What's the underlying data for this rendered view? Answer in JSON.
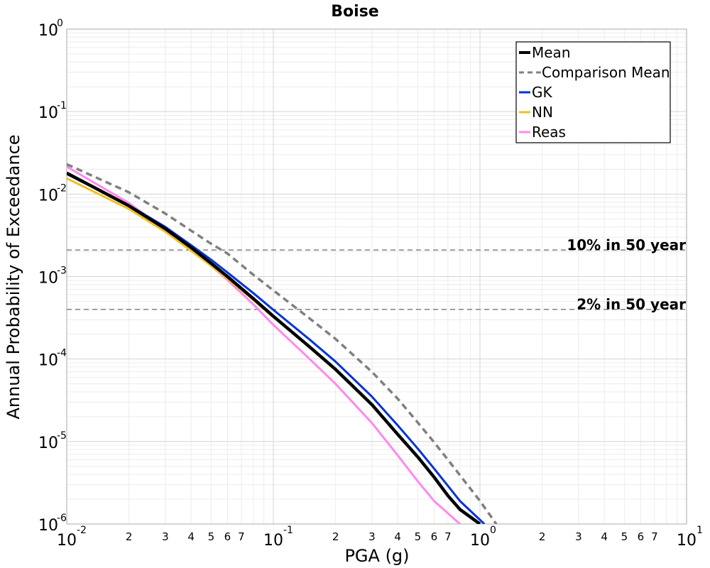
{
  "chart_data": {
    "type": "line",
    "title": "Boise",
    "xlabel": "PGA (g)",
    "ylabel": "Annual Probability of Exceedance",
    "xscale": "log",
    "yscale": "log",
    "xlim": [
      0.01,
      10
    ],
    "ylim": [
      1e-06,
      1
    ],
    "grid": true,
    "legend_position": "top-right",
    "x_major_ticks": [
      0.01,
      0.1,
      1,
      10
    ],
    "y_major_ticks": [
      1e-06,
      1e-05,
      0.0001,
      0.001,
      0.01,
      0.1,
      1
    ],
    "x_minor_tick_labels": [
      "2",
      "3",
      "4",
      "5",
      "6",
      "7"
    ],
    "series": [
      {
        "name": "Mean",
        "color": "#000000",
        "dash": "solid",
        "points": [
          [
            0.01,
            0.018
          ],
          [
            0.02,
            0.0072
          ],
          [
            0.03,
            0.0038
          ],
          [
            0.04,
            0.00225
          ],
          [
            0.05,
            0.00145
          ],
          [
            0.06,
            0.001
          ],
          [
            0.08,
            0.00054
          ],
          [
            0.1,
            0.00033
          ],
          [
            0.15,
            0.00014
          ],
          [
            0.2,
            7.5e-05
          ],
          [
            0.3,
            2.8e-05
          ],
          [
            0.4,
            1.22e-05
          ],
          [
            0.5,
            6.5e-06
          ],
          [
            0.6,
            3.7e-06
          ],
          [
            0.7,
            2.2e-06
          ],
          [
            0.8,
            1.5e-06
          ],
          [
            1.0,
            1e-06
          ]
        ]
      },
      {
        "name": "Comparison Mean",
        "color": "#808080",
        "dash": "dashed",
        "points": [
          [
            0.01,
            0.023
          ],
          [
            0.02,
            0.0105
          ],
          [
            0.03,
            0.0058
          ],
          [
            0.04,
            0.0036
          ],
          [
            0.05,
            0.0025
          ],
          [
            0.06,
            0.0019
          ],
          [
            0.08,
            0.00105
          ],
          [
            0.1,
            0.00068
          ],
          [
            0.15,
            0.00031
          ],
          [
            0.2,
            0.000175
          ],
          [
            0.3,
            7e-05
          ],
          [
            0.4,
            3.3e-05
          ],
          [
            0.5,
            1.7e-05
          ],
          [
            0.6,
            9.8e-06
          ],
          [
            0.7,
            6e-06
          ],
          [
            0.8,
            3.9e-06
          ],
          [
            1.0,
            1.9e-06
          ],
          [
            1.2,
            1e-06
          ]
        ]
      },
      {
        "name": "GK",
        "color": "#0033dd",
        "dash": "solid",
        "points": [
          [
            0.01,
            0.0175
          ],
          [
            0.02,
            0.0073
          ],
          [
            0.03,
            0.004
          ],
          [
            0.04,
            0.0024
          ],
          [
            0.05,
            0.0016
          ],
          [
            0.06,
            0.00112
          ],
          [
            0.08,
            0.00063
          ],
          [
            0.1,
            0.000395
          ],
          [
            0.15,
            0.000172
          ],
          [
            0.2,
            9.3e-05
          ],
          [
            0.3,
            3.5e-05
          ],
          [
            0.4,
            1.57e-05
          ],
          [
            0.5,
            8.2e-06
          ],
          [
            0.6,
            4.7e-06
          ],
          [
            0.7,
            2.9e-06
          ],
          [
            0.8,
            1.9e-06
          ],
          [
            1.05,
            1e-06
          ]
        ]
      },
      {
        "name": "NN",
        "color": "#f0c020",
        "dash": "solid",
        "points": [
          [
            0.01,
            0.0155
          ],
          [
            0.02,
            0.0066
          ],
          [
            0.03,
            0.0035
          ],
          [
            0.04,
            0.00205
          ],
          [
            0.05,
            0.00135
          ],
          [
            0.06,
            0.00094
          ],
          [
            0.08,
            0.00052
          ],
          [
            0.1,
            0.00032
          ]
        ]
      },
      {
        "name": "Reas",
        "color": "#ff88ee",
        "dash": "solid",
        "points": [
          [
            0.01,
            0.0215
          ],
          [
            0.02,
            0.0078
          ],
          [
            0.03,
            0.0037
          ],
          [
            0.04,
            0.0021
          ],
          [
            0.05,
            0.00135
          ],
          [
            0.06,
            0.00091
          ],
          [
            0.08,
            0.00046
          ],
          [
            0.1,
            0.00026
          ],
          [
            0.15,
            0.0001
          ],
          [
            0.2,
            5e-05
          ],
          [
            0.3,
            1.68e-05
          ],
          [
            0.4,
            6.8e-06
          ],
          [
            0.5,
            3.3e-06
          ],
          [
            0.6,
            1.9e-06
          ],
          [
            0.8,
            1e-06
          ]
        ]
      }
    ],
    "reference_lines": [
      {
        "label": "10% in 50 year",
        "y": 0.0021,
        "color": "#808080"
      },
      {
        "label": "2% in 50 year",
        "y": 0.0004,
        "color": "#808080"
      }
    ]
  }
}
